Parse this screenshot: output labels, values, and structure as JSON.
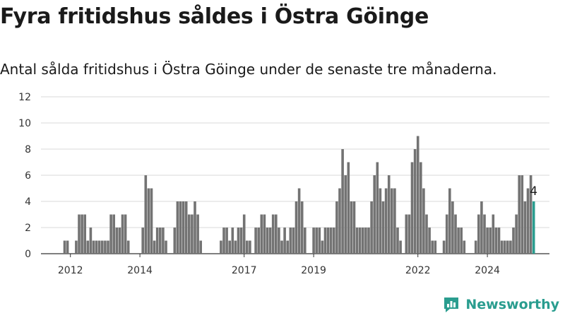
{
  "header": {
    "title": "Fyra fritidshus såldes i Östra Göinge",
    "subtitle": "Antal sålda fritidshus i Östra Göinge under de senaste tre månaderna."
  },
  "brand": {
    "name": "Newsworthy",
    "icon": "newsworthy-logo-icon",
    "color": "#2a9d8f"
  },
  "chart_data": {
    "type": "bar",
    "title": "Fyra fritidshus såldes i Östra Göinge",
    "subtitle": "Antal sålda fritidshus i Östra Göinge under de senaste tre månaderna.",
    "xlabel": "",
    "ylabel": "",
    "ylim": [
      0,
      12
    ],
    "y_ticks": [
      "0",
      "2",
      "4",
      "6",
      "8",
      "10",
      "12"
    ],
    "x_ticks": [
      "2012",
      "2014",
      "2017",
      "2019",
      "2022",
      "2024"
    ],
    "grid": true,
    "bar_color": "#737373",
    "highlight_color": "#2a9d8f",
    "highlight_label": "4",
    "series_start": "2011-11",
    "frequency": "monthly",
    "values": [
      1,
      1,
      0,
      0,
      1,
      3,
      3,
      3,
      1,
      2,
      1,
      1,
      1,
      1,
      1,
      1,
      3,
      3,
      2,
      2,
      3,
      3,
      1,
      0,
      0,
      0,
      0,
      2,
      6,
      5,
      5,
      1,
      2,
      2,
      2,
      1,
      0,
      0,
      2,
      4,
      4,
      4,
      4,
      3,
      3,
      4,
      3,
      1,
      0,
      0,
      0,
      0,
      0,
      0,
      1,
      2,
      2,
      1,
      2,
      1,
      2,
      2,
      3,
      1,
      1,
      0,
      2,
      2,
      3,
      3,
      2,
      2,
      3,
      3,
      2,
      1,
      2,
      1,
      2,
      2,
      4,
      5,
      4,
      2,
      0,
      0,
      2,
      2,
      2,
      1,
      2,
      2,
      2,
      2,
      4,
      5,
      8,
      6,
      7,
      4,
      4,
      2,
      2,
      2,
      2,
      2,
      4,
      6,
      7,
      5,
      4,
      5,
      6,
      5,
      5,
      2,
      1,
      0,
      3,
      3,
      7,
      8,
      9,
      7,
      5,
      3,
      2,
      1,
      1,
      0,
      0,
      1,
      3,
      5,
      4,
      3,
      2,
      2,
      1,
      0,
      0,
      0,
      1,
      3,
      4,
      3,
      2,
      2,
      3,
      2,
      2,
      1,
      1,
      1,
      1,
      2,
      3,
      6,
      6,
      4,
      5,
      6,
      4
    ]
  }
}
